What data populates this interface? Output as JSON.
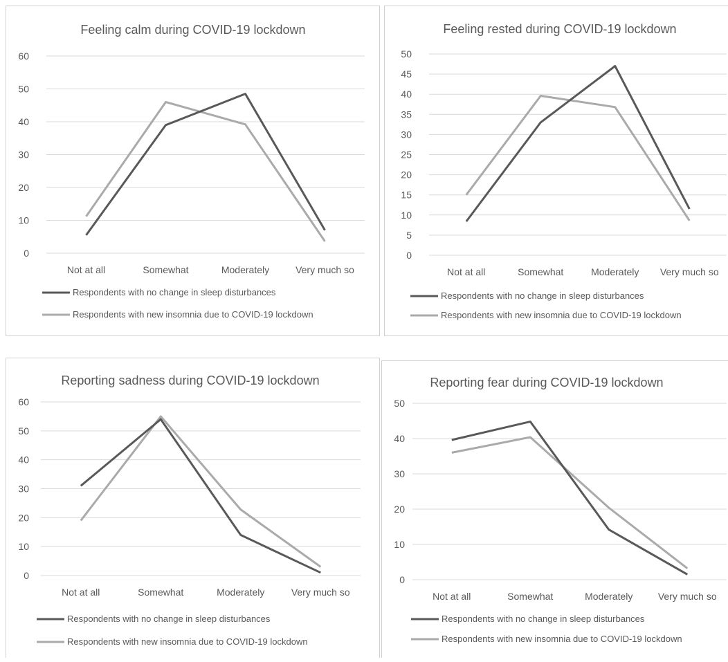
{
  "colors": {
    "series1": "#595959",
    "series2": "#aaaaaa",
    "grid": "#d9d9d9",
    "text": "#595959"
  },
  "chart_data": [
    {
      "type": "line",
      "title": "Feeling calm during COVID-19 lockdown",
      "categories": [
        "Not at all",
        "Somewhat",
        "Moderately",
        "Very much so"
      ],
      "ylim": [
        0,
        60
      ],
      "yticks": [
        "0",
        "10",
        "20",
        "30",
        "40",
        "50",
        "60"
      ],
      "grid": true,
      "legend_position": "bottom",
      "series": [
        {
          "name": "Respondents with no change in sleep disturbances",
          "values": [
            5.5,
            39,
            48.5,
            7
          ]
        },
        {
          "name": "Respondents with new insomnia due to COVID-19 lockdown",
          "values": [
            11.2,
            46,
            39.2,
            3.6
          ]
        }
      ]
    },
    {
      "type": "line",
      "title": "Feeling rested during COVID-19 lockdown",
      "categories": [
        "Not at all",
        "Somewhat",
        "Moderately",
        "Very much so"
      ],
      "ylim": [
        0,
        50
      ],
      "yticks": [
        "0",
        "5",
        "10",
        "15",
        "20",
        "25",
        "30",
        "35",
        "40",
        "45",
        "50"
      ],
      "grid": true,
      "legend_position": "bottom",
      "series": [
        {
          "name": "Respondents with no change in sleep disturbances",
          "values": [
            8.4,
            33,
            47,
            11.5
          ]
        },
        {
          "name": "Respondents with new insomnia due to COVID-19 lockdown",
          "values": [
            15,
            39.6,
            36.8,
            8.6
          ]
        }
      ]
    },
    {
      "type": "line",
      "title": "Reporting sadness during COVID-19 lockdown",
      "categories": [
        "Not at all",
        "Somewhat",
        "Moderately",
        "Very much so"
      ],
      "ylim": [
        0,
        60
      ],
      "yticks": [
        "0",
        "10",
        "20",
        "30",
        "40",
        "50",
        "60"
      ],
      "grid": true,
      "legend_position": "bottom",
      "series": [
        {
          "name": "Respondents with no change in sleep disturbances",
          "values": [
            31,
            54,
            14,
            1
          ]
        },
        {
          "name": "Respondents with new insomnia due to COVID-19 lockdown",
          "values": [
            19,
            55,
            22.8,
            3
          ]
        }
      ]
    },
    {
      "type": "line",
      "title": "Reporting fear during COVID-19 lockdown",
      "categories": [
        "Not at all",
        "Somewhat",
        "Moderately",
        "Very much so"
      ],
      "ylim": [
        0,
        50
      ],
      "yticks": [
        "0",
        "10",
        "20",
        "30",
        "40",
        "50"
      ],
      "grid": true,
      "legend_position": "bottom",
      "series": [
        {
          "name": "Respondents with no change in sleep disturbances",
          "values": [
            39.6,
            44.8,
            14.2,
            1.5
          ]
        },
        {
          "name": "Respondents with new insomnia due to COVID-19 lockdown",
          "values": [
            36,
            40.4,
            20.4,
            3.2
          ]
        }
      ]
    }
  ]
}
